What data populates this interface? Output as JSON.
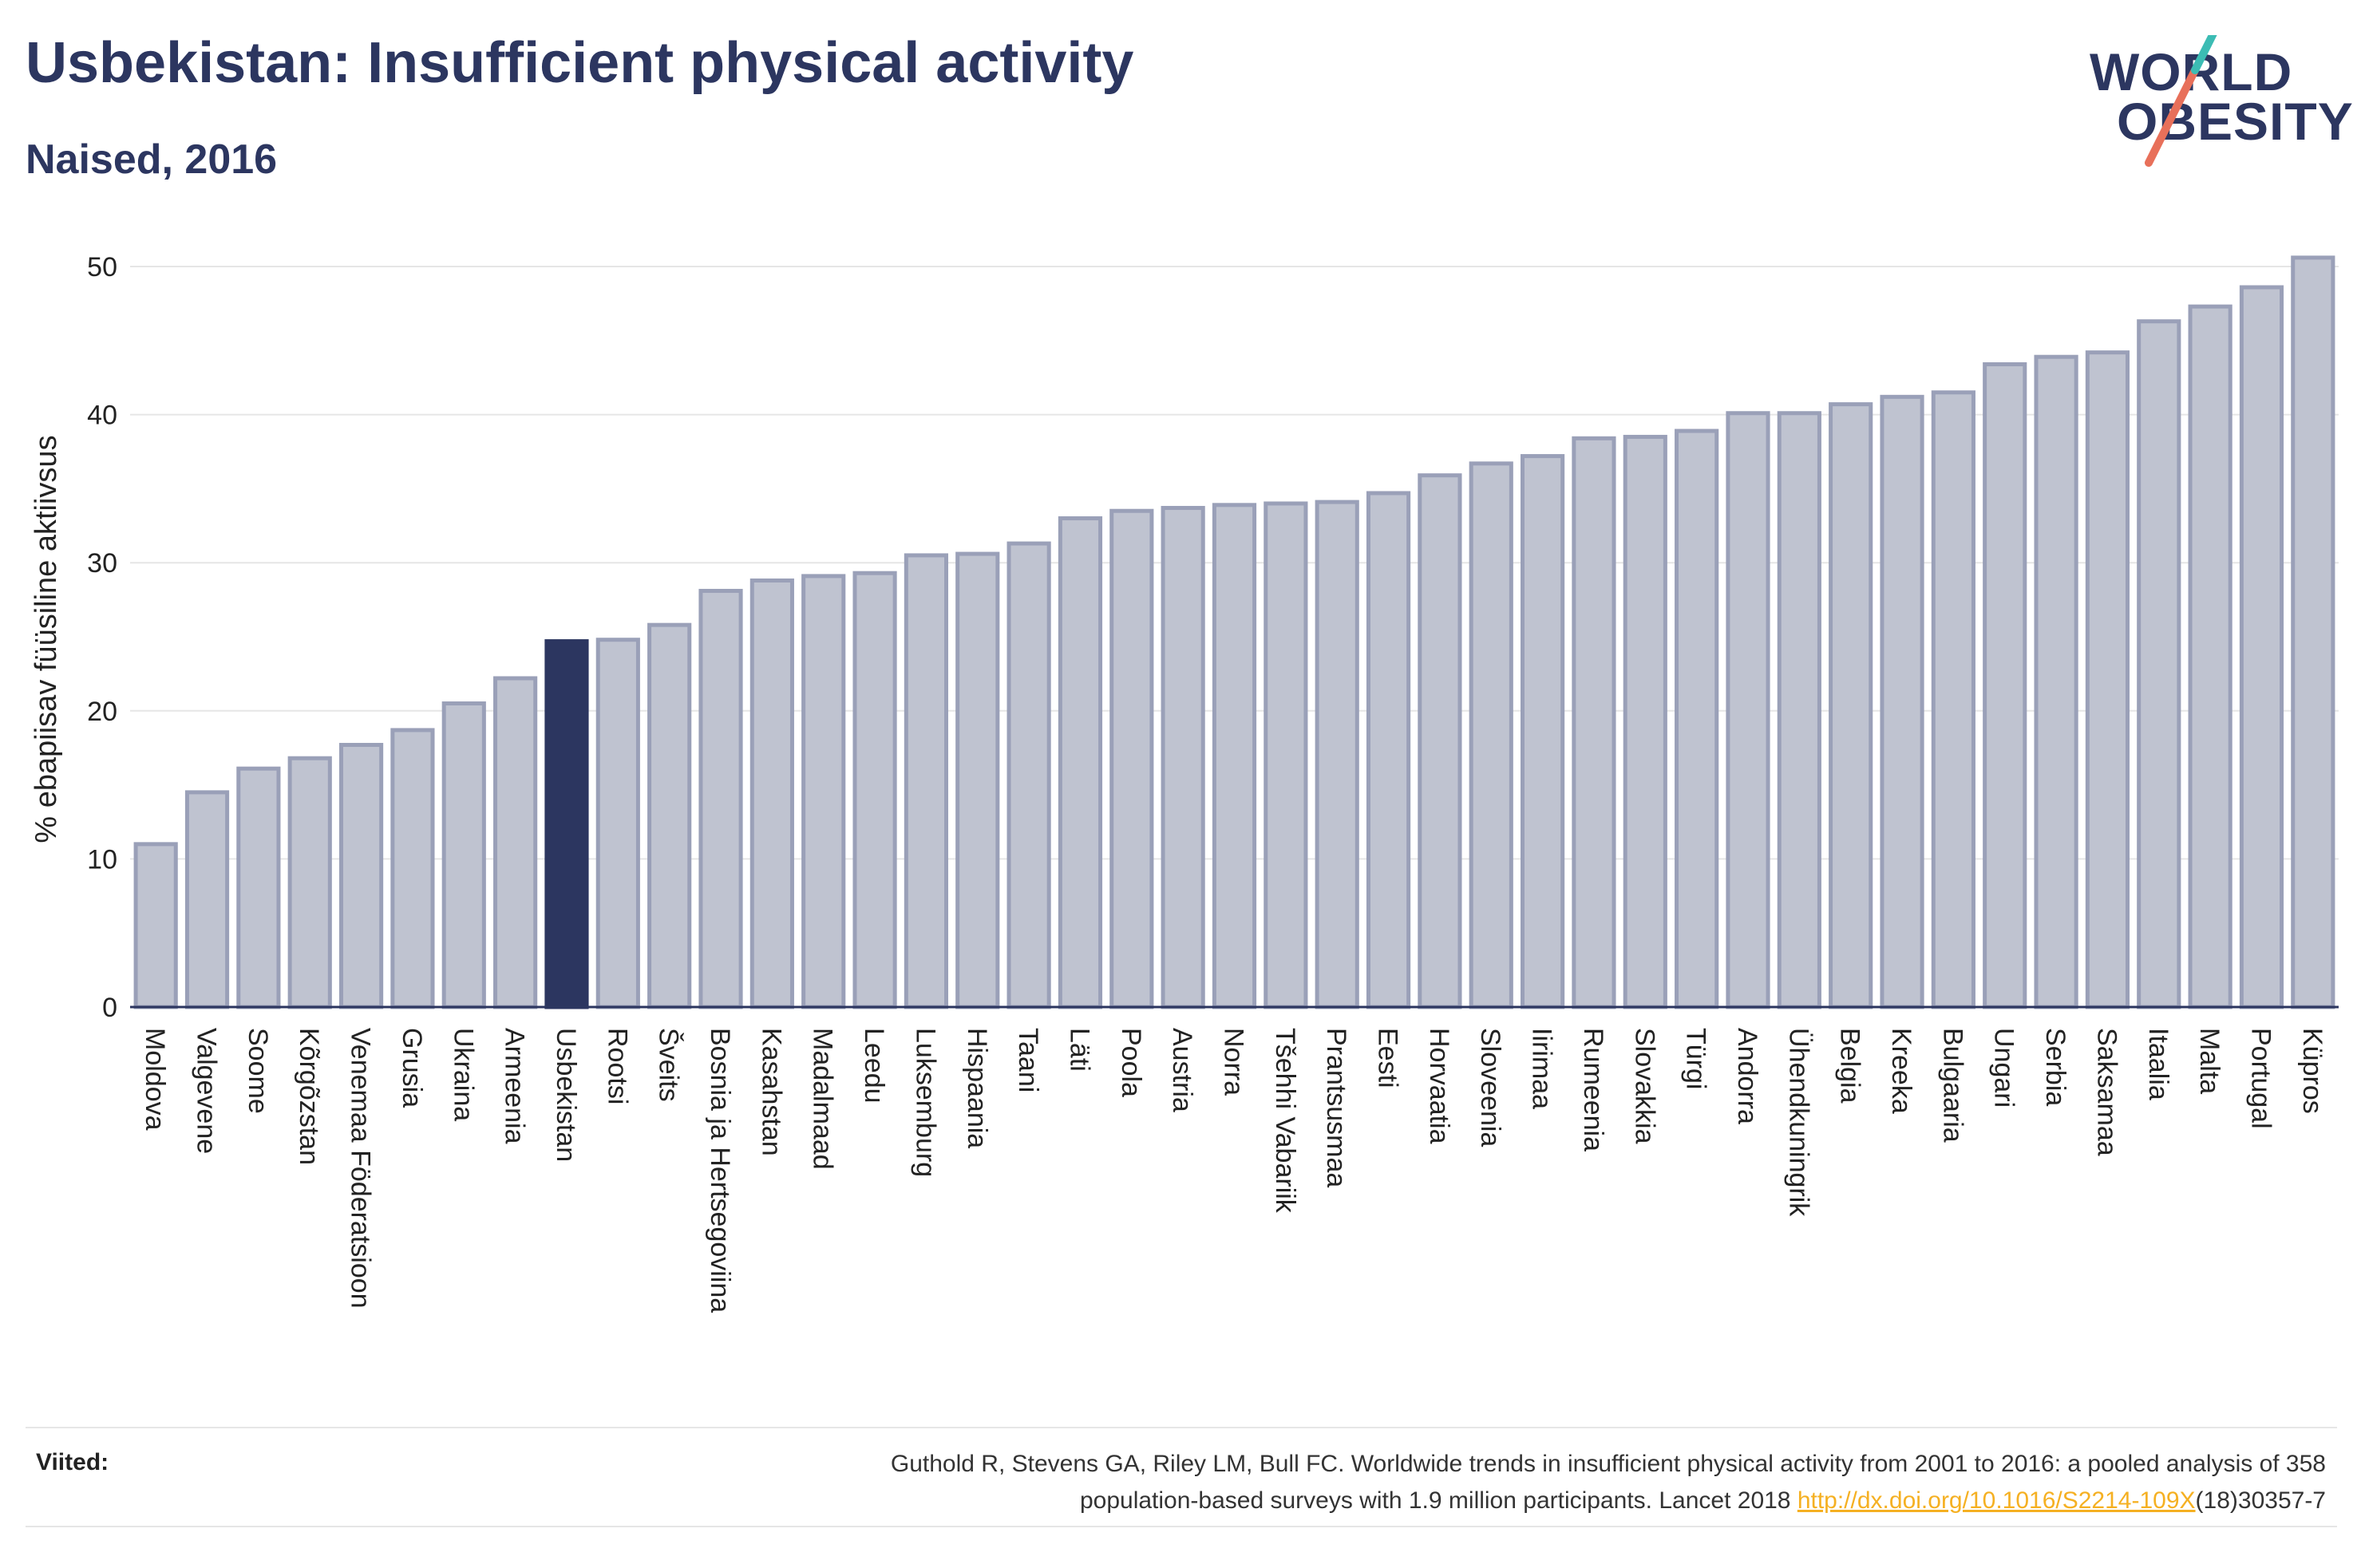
{
  "title": "Usbekistan: Insufficient physical activity",
  "subtitle": "Naised, 2016",
  "logo": {
    "line1": "WORLD",
    "line2": "OBESITY",
    "colors": {
      "text": "#2c3660",
      "slash_top": "#3cbcb4",
      "slash_bottom": "#e8705a"
    }
  },
  "chart_data": {
    "type": "bar",
    "ylabel": "% ebapiisav füüsiline aktiivsus",
    "xlabel": "",
    "ylim": [
      0,
      52
    ],
    "yticks": [
      0,
      10,
      20,
      30,
      40,
      50
    ],
    "grid": true,
    "highlight": "Usbekistan",
    "colors": {
      "bar": "#bfc3d0",
      "bar_edge": "#9aa0b8",
      "highlight": "#2c3660",
      "grid": "#e6e6e6"
    },
    "categories": [
      "Moldova",
      "Valgevene",
      "Soome",
      "Kõrgõzstan",
      "Venemaa Föderatsioon",
      "Grusia",
      "Ukraina",
      "Armeenia",
      "Usbekistan",
      "Rootsi",
      "Šveits",
      "Bosnia ja Hertsegoviina",
      "Kasahstan",
      "Madalmaad",
      "Leedu",
      "Luksemburg",
      "Hispaania",
      "Taani",
      "Läti",
      "Poola",
      "Austria",
      "Norra",
      "Tšehhi Vabariik",
      "Prantsusmaa",
      "Eesti",
      "Horvaatia",
      "Sloveenia",
      "Iirimaa",
      "Rumeenia",
      "Slovakkia",
      "Türgi",
      "Andorra",
      "Ühendkuningrik",
      "Belgia",
      "Kreeka",
      "Bulgaaria",
      "Ungari",
      "Serbia",
      "Saksamaa",
      "Itaalia",
      "Malta",
      "Portugal",
      "Küpros"
    ],
    "values": [
      11.0,
      14.5,
      16.1,
      16.8,
      17.7,
      18.7,
      20.5,
      22.2,
      24.7,
      24.8,
      25.8,
      28.1,
      28.8,
      29.1,
      29.3,
      30.5,
      30.6,
      31.3,
      33.0,
      33.5,
      33.7,
      33.9,
      34.0,
      34.1,
      34.7,
      35.9,
      36.7,
      37.2,
      38.4,
      38.5,
      38.9,
      40.1,
      40.1,
      40.7,
      41.2,
      41.5,
      43.4,
      43.9,
      44.2,
      46.3,
      47.3,
      48.6,
      50.6
    ]
  },
  "references": {
    "label": "Viited:",
    "line1": "Guthold R, Stevens GA, Riley LM, Bull FC. Worldwide trends in insufficient physical activity from 2001 to 2016: a pooled analysis of 358",
    "line2_pre": "population-based surveys with 1.9 million participants. Lancet 2018 ",
    "link": "http://dx.doi.org/10.1016/S2214-109X",
    "line2_post": "(18)30357-7"
  }
}
